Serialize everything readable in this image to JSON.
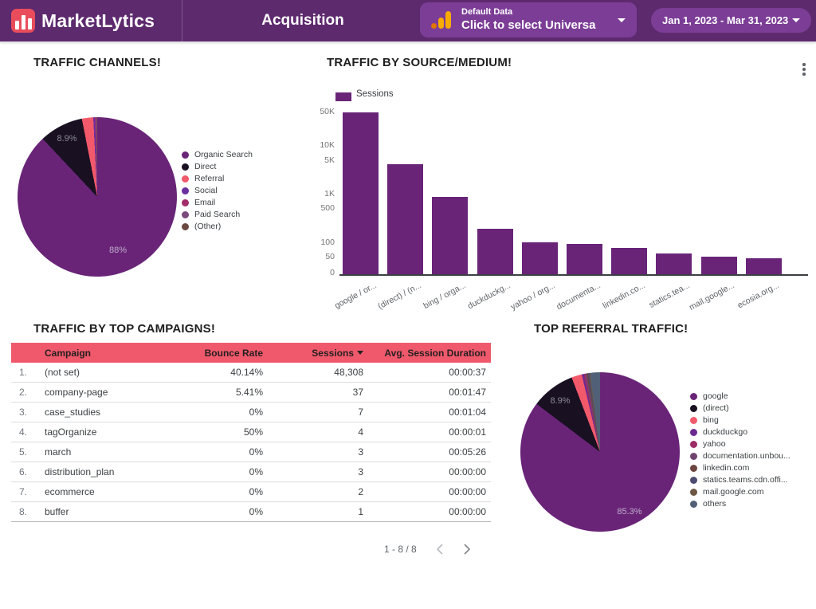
{
  "header": {
    "brand": "MarketLytics",
    "page_title": "Acquisition",
    "data_selector": {
      "top_label": "Default Data",
      "main_label": "Click to select Universa"
    },
    "date_range": "Jan 1, 2023 - Mar 31, 2023"
  },
  "colors": {
    "header_bg": "#5d2a6e",
    "pill_bg": "#7c3d96",
    "brand_red": "#e94d5b",
    "primary_purple": "#692478",
    "table_header_bg": "#f0596b",
    "ga_orange": "#f9ab00",
    "ga_orange_dark": "#e37400"
  },
  "chart_data": [
    {
      "id": "traffic_channels",
      "type": "pie",
      "title": "TRAFFIC CHANNELS!",
      "legend_position": "right",
      "shown_labels": [
        "8.9%",
        "88%"
      ],
      "slices": [
        {
          "label": "Organic Search",
          "value": 88.0,
          "color": "#692478"
        },
        {
          "label": "Direct",
          "value": 8.9,
          "color": "#191022"
        },
        {
          "label": "Referral",
          "value": 2.3,
          "color": "#f2596b"
        },
        {
          "label": "Social",
          "value": 0.35,
          "color": "#6b2fa0"
        },
        {
          "label": "Email",
          "value": 0.2,
          "color": "#a02d68"
        },
        {
          "label": "Paid Search",
          "value": 0.15,
          "color": "#7c4a7d"
        },
        {
          "label": "(Other)",
          "value": 0.1,
          "color": "#6b4a42"
        }
      ]
    },
    {
      "id": "source_medium",
      "type": "bar",
      "title": "TRAFFIC BY SOURCE/MEDIUM!",
      "legend_position": "top-left",
      "y_scale": "log",
      "ylim": [
        0,
        50000
      ],
      "grid": false,
      "y_ticks": [
        {
          "label": "50K",
          "value": 50000
        },
        {
          "label": "10K",
          "value": 10000
        },
        {
          "label": "5K",
          "value": 5000
        },
        {
          "label": "1K",
          "value": 1000
        },
        {
          "label": "500",
          "value": 500
        },
        {
          "label": "100",
          "value": 100
        },
        {
          "label": "50",
          "value": 50
        },
        {
          "label": "0",
          "value": 0
        }
      ],
      "categories": [
        "google / or...",
        "(direct) / (n...",
        "bing / orga...",
        "duckduckg...",
        "yahoo / org...",
        "documenta...",
        "linkedin.co...",
        "statics.tea...",
        "mail.google...",
        "ecosia.org..."
      ],
      "series": [
        {
          "name": "Sessions",
          "color": "#692478",
          "values": [
            48308,
            4100,
            870,
            190,
            100,
            92,
            74,
            57,
            50,
            46
          ]
        }
      ]
    },
    {
      "id": "top_campaigns",
      "type": "table",
      "title": "TRAFFIC BY TOP CAMPAIGNS!",
      "columns": [
        "Campaign",
        "Bounce Rate",
        "Sessions",
        "Avg. Session Duration"
      ],
      "sorted_by": "Sessions",
      "rows": [
        {
          "idx": "1.",
          "campaign": "(not set)",
          "bounce": "40.14%",
          "sessions": "48,308",
          "duration": "00:00:37"
        },
        {
          "idx": "2.",
          "campaign": "company-page",
          "bounce": "5.41%",
          "sessions": "37",
          "duration": "00:01:47"
        },
        {
          "idx": "3.",
          "campaign": "case_studies",
          "bounce": "0%",
          "sessions": "7",
          "duration": "00:01:04"
        },
        {
          "idx": "4.",
          "campaign": "tagOrganize",
          "bounce": "50%",
          "sessions": "4",
          "duration": "00:00:01"
        },
        {
          "idx": "5.",
          "campaign": "march",
          "bounce": "0%",
          "sessions": "3",
          "duration": "00:05:26"
        },
        {
          "idx": "6.",
          "campaign": "distribution_plan",
          "bounce": "0%",
          "sessions": "3",
          "duration": "00:00:00"
        },
        {
          "idx": "7.",
          "campaign": "ecommerce",
          "bounce": "0%",
          "sessions": "2",
          "duration": "00:00:00"
        },
        {
          "idx": "8.",
          "campaign": "buffer",
          "bounce": "0%",
          "sessions": "1",
          "duration": "00:00:00"
        }
      ]
    },
    {
      "id": "top_referral",
      "type": "pie",
      "title": "TOP REFERRAL TRAFFIC!",
      "legend_position": "right",
      "shown_labels": [
        "8.9%",
        "85.3%"
      ],
      "slices": [
        {
          "label": "google",
          "value": 85.3,
          "color": "#692478"
        },
        {
          "label": "(direct)",
          "value": 8.9,
          "color": "#191022"
        },
        {
          "label": "bing",
          "value": 2.1,
          "color": "#f2596b"
        },
        {
          "label": "duckduckgo",
          "value": 0.4,
          "color": "#6d2a92"
        },
        {
          "label": "yahoo",
          "value": 0.3,
          "color": "#9c2c66"
        },
        {
          "label": "documentation.unbou...",
          "value": 0.3,
          "color": "#70446f"
        },
        {
          "label": "linkedin.com",
          "value": 0.25,
          "color": "#6d4540"
        },
        {
          "label": "statics.teams.cdn.offi...",
          "value": 0.25,
          "color": "#4c4c72"
        },
        {
          "label": "mail.google.com",
          "value": 0.2,
          "color": "#6e5743"
        },
        {
          "label": "others",
          "value": 2.0,
          "color": "#526077"
        }
      ]
    }
  ],
  "pagination": {
    "label": "1 - 8 / 8"
  }
}
